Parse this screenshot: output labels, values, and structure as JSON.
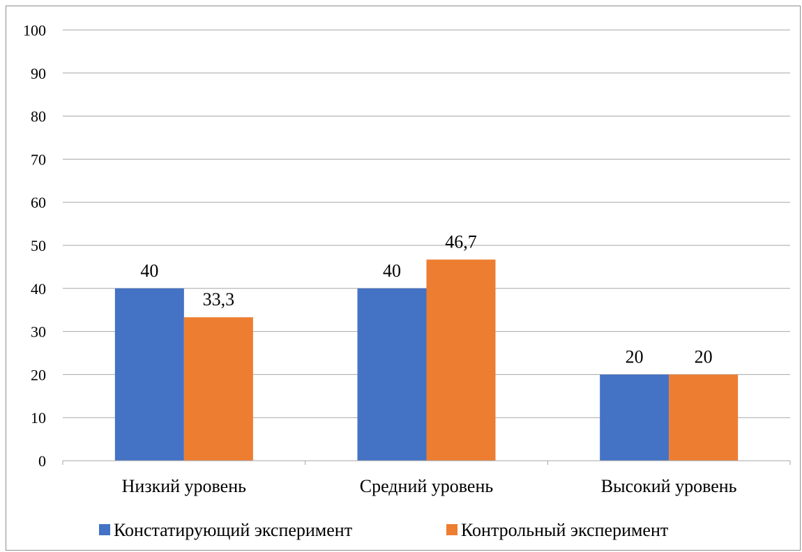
{
  "chart_data": {
    "type": "bar",
    "categories": [
      "Низкий уровень",
      "Средний уровень",
      "Высокий уровень"
    ],
    "series": [
      {
        "name": "Констатирующий эксперимент",
        "values": [
          40,
          40,
          20
        ],
        "labels": [
          "40",
          "40",
          "20"
        ],
        "color": "#4472C4"
      },
      {
        "name": "Контрольный эксперимент",
        "values": [
          33.3,
          46.7,
          20
        ],
        "labels": [
          "33,3",
          "46,7",
          "20"
        ],
        "color": "#ED7D31"
      }
    ],
    "ylim": [
      0,
      100
    ],
    "yticks": [
      0,
      10,
      20,
      30,
      40,
      50,
      60,
      70,
      80,
      90,
      100
    ],
    "grid": true,
    "legend": "bottom"
  }
}
